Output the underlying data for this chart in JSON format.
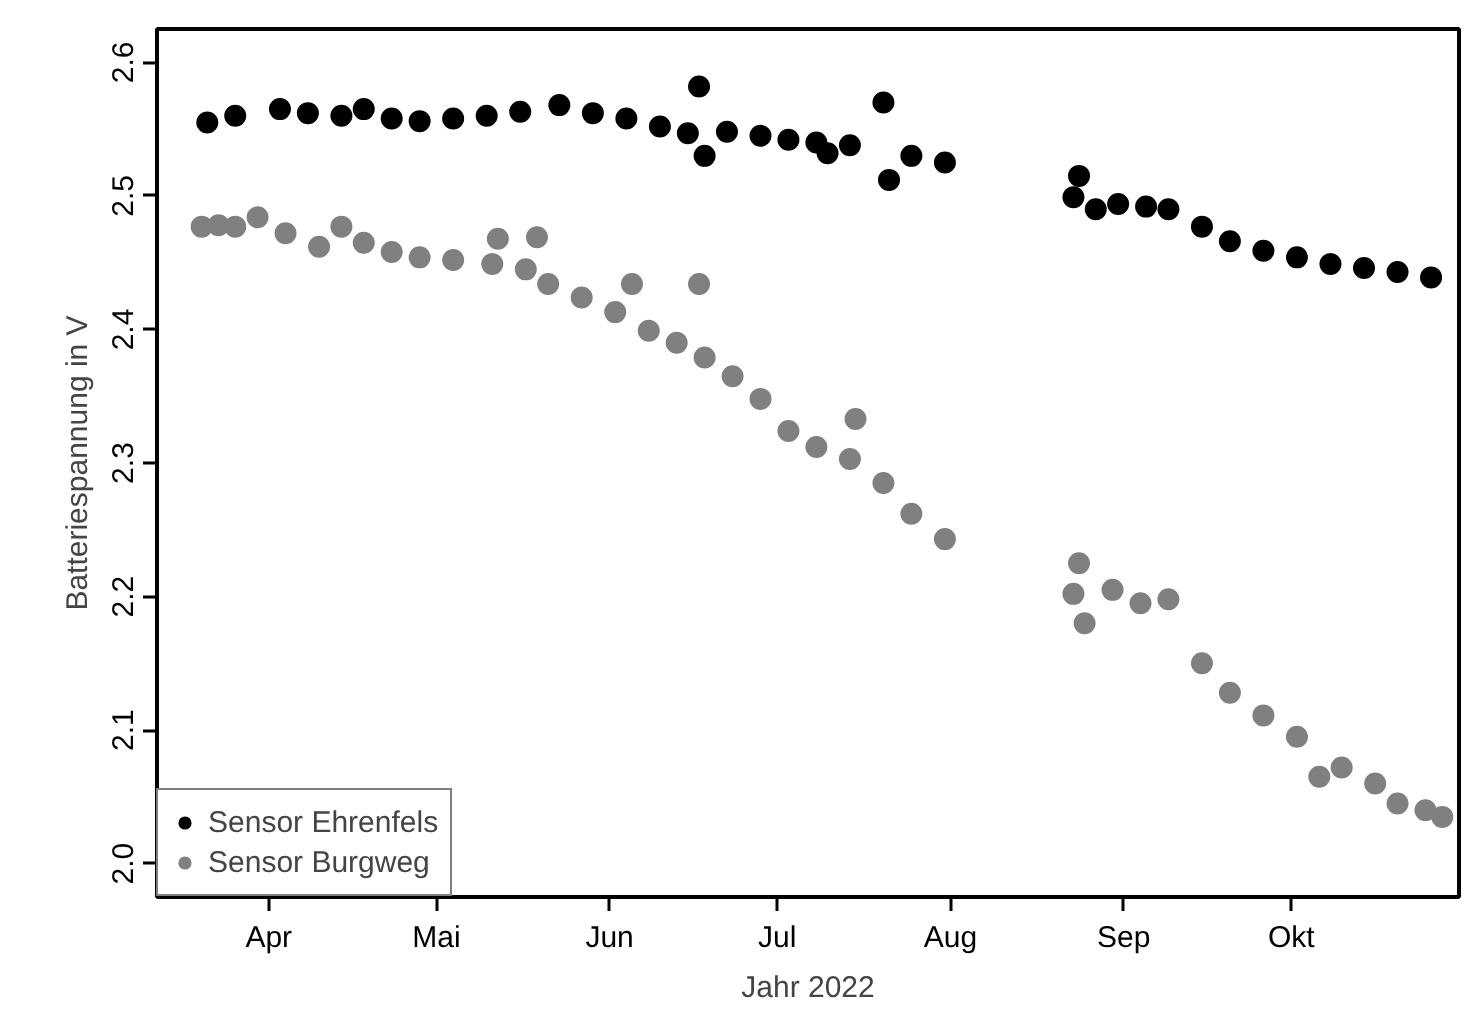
{
  "chart_data": {
    "type": "scatter",
    "xlabel": "Jahr 2022",
    "ylabel": "Batteriespannung in V",
    "xlim": [
      "2022-03-12",
      "2022-10-31"
    ],
    "ylim": [
      1.975,
      2.625
    ],
    "xticks": [
      {
        "value": "2022-04-01",
        "label": "Apr"
      },
      {
        "value": "2022-05-01",
        "label": "Mai"
      },
      {
        "value": "2022-06-01",
        "label": "Jun"
      },
      {
        "value": "2022-07-01",
        "label": "Jul"
      },
      {
        "value": "2022-08-01",
        "label": "Aug"
      },
      {
        "value": "2022-09-01",
        "label": "Sep"
      },
      {
        "value": "2022-10-01",
        "label": "Okt"
      }
    ],
    "yticks": [
      {
        "value": 2.0,
        "label": "2.0"
      },
      {
        "value": 2.1,
        "label": "2.1"
      },
      {
        "value": 2.2,
        "label": "2.2"
      },
      {
        "value": 2.3,
        "label": "2.3"
      },
      {
        "value": 2.4,
        "label": "2.4"
      },
      {
        "value": 2.5,
        "label": "2.5"
      },
      {
        "value": 2.6,
        "label": "2.6"
      }
    ],
    "grid": false,
    "legend": "bottom left",
    "marker": "circle",
    "series": [
      {
        "name": "Sensor Ehrenfels",
        "color": "#000000",
        "x": [
          "2022-03-21",
          "2022-03-26",
          "2022-04-03",
          "2022-04-08",
          "2022-04-14",
          "2022-04-18",
          "2022-04-23",
          "2022-04-28",
          "2022-05-04",
          "2022-05-10",
          "2022-05-16",
          "2022-05-23",
          "2022-05-29",
          "2022-06-04",
          "2022-06-10",
          "2022-06-15",
          "2022-06-17",
          "2022-06-18",
          "2022-06-22",
          "2022-06-28",
          "2022-07-03",
          "2022-07-08",
          "2022-07-10",
          "2022-07-14",
          "2022-07-20",
          "2022-07-21",
          "2022-07-25",
          "2022-07-31",
          "2022-08-23",
          "2022-08-24",
          "2022-08-27",
          "2022-08-31",
          "2022-09-05",
          "2022-09-09",
          "2022-09-15",
          "2022-09-20",
          "2022-09-26",
          "2022-10-02",
          "2022-10-08",
          "2022-10-14",
          "2022-10-20",
          "2022-10-26"
        ],
        "values": [
          2.555,
          2.56,
          2.565,
          2.562,
          2.56,
          2.565,
          2.558,
          2.556,
          2.558,
          2.56,
          2.563,
          2.568,
          2.562,
          2.558,
          2.552,
          2.547,
          2.582,
          2.53,
          2.548,
          2.545,
          2.542,
          2.54,
          2.532,
          2.538,
          2.57,
          2.512,
          2.53,
          2.525,
          2.499,
          2.515,
          2.49,
          2.494,
          2.492,
          2.49,
          2.477,
          2.466,
          2.459,
          2.454,
          2.449,
          2.446,
          2.443,
          2.439
        ]
      },
      {
        "name": "Sensor Burgweg",
        "color": "#808080",
        "x": [
          "2022-03-20",
          "2022-03-23",
          "2022-03-26",
          "2022-03-30",
          "2022-04-04",
          "2022-04-10",
          "2022-04-14",
          "2022-04-18",
          "2022-04-23",
          "2022-04-28",
          "2022-05-04",
          "2022-05-11",
          "2022-05-12",
          "2022-05-17",
          "2022-05-19",
          "2022-05-21",
          "2022-05-27",
          "2022-06-02",
          "2022-06-05",
          "2022-06-08",
          "2022-06-13",
          "2022-06-17",
          "2022-06-18",
          "2022-06-23",
          "2022-06-28",
          "2022-07-03",
          "2022-07-08",
          "2022-07-14",
          "2022-07-15",
          "2022-07-20",
          "2022-07-25",
          "2022-07-31",
          "2022-08-23",
          "2022-08-24",
          "2022-08-25",
          "2022-08-30",
          "2022-09-04",
          "2022-09-09",
          "2022-09-15",
          "2022-09-20",
          "2022-09-26",
          "2022-10-02",
          "2022-10-06",
          "2022-10-10",
          "2022-10-16",
          "2022-10-20",
          "2022-10-25",
          "2022-10-28"
        ],
        "values": [
          2.477,
          2.478,
          2.477,
          2.484,
          2.472,
          2.462,
          2.477,
          2.465,
          2.458,
          2.454,
          2.452,
          2.449,
          2.468,
          2.445,
          2.469,
          2.434,
          2.424,
          2.413,
          2.434,
          2.399,
          2.39,
          2.434,
          2.379,
          2.365,
          2.348,
          2.324,
          2.312,
          2.303,
          2.333,
          2.285,
          2.262,
          2.243,
          2.202,
          2.225,
          2.18,
          2.205,
          2.195,
          2.198,
          2.15,
          2.128,
          2.111,
          2.095,
          2.065,
          2.072,
          2.06,
          2.045,
          2.04,
          2.035
        ]
      }
    ]
  }
}
